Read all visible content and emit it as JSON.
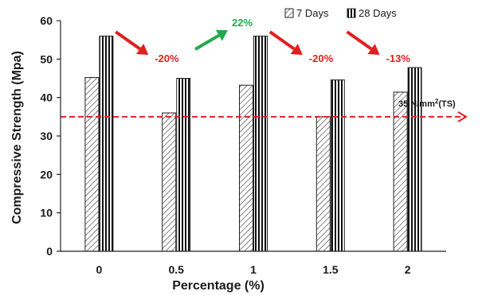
{
  "chart_data": {
    "type": "bar",
    "categories": [
      "0",
      "0.5",
      "1",
      "1.5",
      "2"
    ],
    "series": [
      {
        "name": "7 Days",
        "values": [
          45.2,
          36.0,
          43.2,
          35.0,
          41.4
        ],
        "pattern": "diagonal-hatch"
      },
      {
        "name": "28 Days",
        "values": [
          56.0,
          45.0,
          56.0,
          44.6,
          47.8
        ],
        "pattern": "vertical-stripes"
      }
    ],
    "xlabel": "Percentage (%)",
    "ylabel": "Compressive Strength (Mpa)",
    "ylim": [
      0,
      60
    ],
    "yticks": [
      "0",
      "10",
      "20",
      "30",
      "40",
      "50",
      "60"
    ],
    "grid": false,
    "legend": {
      "placement": "top-right",
      "entries": [
        "7 Days",
        "28 Days"
      ]
    },
    "reference_line": {
      "value": 35,
      "label_prefix": "35 N/mm",
      "label_sup": "2",
      "label_suffix": "(TS)",
      "color": "#e02020"
    },
    "annotations": [
      {
        "text": "-20%",
        "color": "#e02020",
        "direction": "down",
        "category": "0.5"
      },
      {
        "text": "22%",
        "color": "#22aa4a",
        "direction": "up",
        "category": "1"
      },
      {
        "text": "-20%",
        "color": "#e02020",
        "direction": "down",
        "category": "1.5"
      },
      {
        "text": "-13%",
        "color": "#e02020",
        "direction": "down",
        "category": "2"
      }
    ]
  }
}
